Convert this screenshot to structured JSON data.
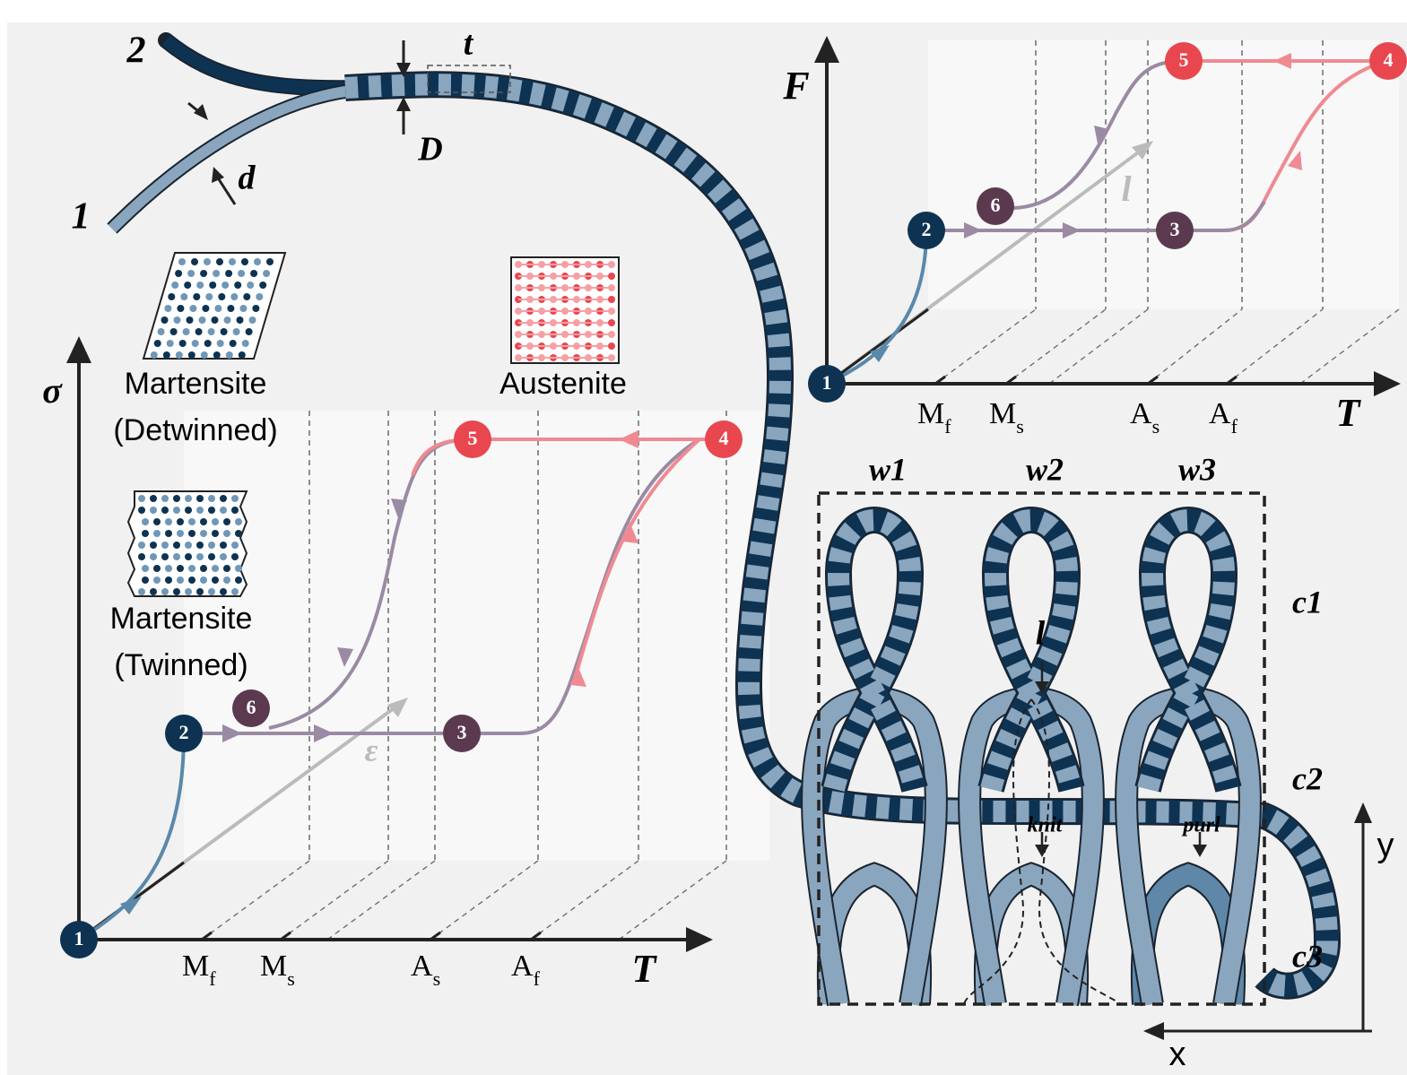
{
  "yarn": {
    "strand_labels": [
      "1",
      "2"
    ],
    "twist_pitch": "t",
    "yarn_diameter": "D",
    "fiber_diameter": "d"
  },
  "stress_diagram": {
    "axis_y": "σ",
    "axis_x": "T",
    "strain_label": "ε",
    "temperatures": [
      {
        "main": "M",
        "sub": "f"
      },
      {
        "main": "M",
        "sub": "s"
      },
      {
        "main": "A",
        "sub": "s"
      },
      {
        "main": "A",
        "sub": "f"
      }
    ],
    "states": [
      "1",
      "2",
      "3",
      "4",
      "5",
      "6"
    ],
    "phases": [
      {
        "line1": "Martensite",
        "line2": "(Detwinned)"
      },
      {
        "line1": "Martensite",
        "line2": "(Twinned)"
      },
      {
        "line1": "Austenite"
      }
    ]
  },
  "force_diagram": {
    "axis_y": "F",
    "axis_x": "T",
    "length_label": "l",
    "temperatures": [
      {
        "main": "M",
        "sub": "f"
      },
      {
        "main": "M",
        "sub": "s"
      },
      {
        "main": "A",
        "sub": "s"
      },
      {
        "main": "A",
        "sub": "f"
      }
    ],
    "states": [
      "1",
      "2",
      "3",
      "4",
      "5",
      "6"
    ]
  },
  "knit": {
    "wales": [
      "w1",
      "w2",
      "w3"
    ],
    "courses": [
      "c1",
      "c2",
      "c3"
    ],
    "loop_length": "l",
    "knit": "knit",
    "purl": "purl",
    "axis_y": "y",
    "axis_x": "x"
  }
}
